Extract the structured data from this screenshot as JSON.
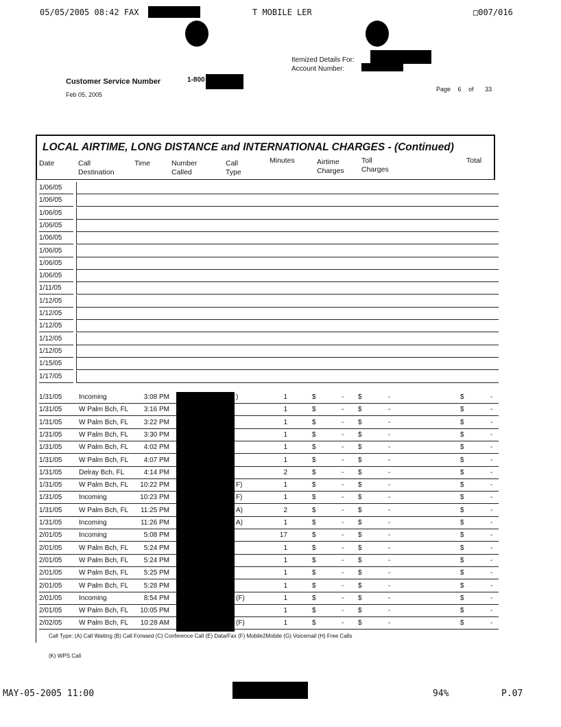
{
  "fax_header": {
    "left": "05/05/2005 08:42 FAX",
    "center": "T MOBILE LER",
    "right": "007/016"
  },
  "account": {
    "itemized_label": "Itemized Details For:",
    "account_label": "Account Number:"
  },
  "customer_service": {
    "label": "Customer Service Number",
    "number_prefix": "1-800"
  },
  "statement_date": "Feb 05, 2005",
  "page_info": {
    "label": "Page",
    "current": "6",
    "of": "of",
    "total": "33"
  },
  "section_title": "LOCAL AIRTIME, LONG DISTANCE and INTERNATIONAL CHARGES  - (Continued)",
  "columns": [
    {
      "line1": "Date",
      "line2": ""
    },
    {
      "line1": "Call",
      "line2": "Destination"
    },
    {
      "line1": "Time",
      "line2": ""
    },
    {
      "line1": "Number",
      "line2": "Called"
    },
    {
      "line1": "Call",
      "line2": "Type"
    },
    {
      "line1": "Minutes",
      "line2": ""
    },
    {
      "line1": "Airtime",
      "line2": "Charges"
    },
    {
      "line1": "Toll",
      "line2": "Charges"
    },
    {
      "line1": "Total",
      "line2": ""
    }
  ],
  "blank_rows": [
    "1/06/05",
    "1/06/05",
    "1/06/05",
    "1/06/05",
    "1/06/05",
    "1/06/05",
    "1/06/05",
    "1/06/05",
    "1/11/05",
    "1/12/05",
    "1/12/05",
    "1/12/05",
    "1/12/05",
    "1/12/05",
    "1/15/05",
    "1/17/05"
  ],
  "rows": [
    {
      "date": "1/31/05",
      "dest": "Incoming",
      "time": "3:08 PM",
      "type": ")",
      "minutes": "1",
      "airtime": "$",
      "airtime_val": "-",
      "toll": "$",
      "toll_val": "-",
      "total": "$",
      "total_val": "-"
    },
    {
      "date": "1/31/05",
      "dest": "W Palm Bch, FL",
      "time": "3:16 PM",
      "type": "",
      "minutes": "1",
      "airtime": "$",
      "airtime_val": "-",
      "toll": "$",
      "toll_val": "-",
      "total": "$",
      "total_val": "-"
    },
    {
      "date": "1/31/05",
      "dest": "W Palm Bch, FL",
      "time": "3:22 PM",
      "type": "",
      "minutes": "1",
      "airtime": "$",
      "airtime_val": "-",
      "toll": "$",
      "toll_val": "-",
      "total": "$",
      "total_val": "-"
    },
    {
      "date": "1/31/05",
      "dest": "W Palm Bch, FL",
      "time": "3:30 PM",
      "type": "",
      "minutes": "1",
      "airtime": "$",
      "airtime_val": "-",
      "toll": "$",
      "toll_val": "-",
      "total": "$",
      "total_val": "-"
    },
    {
      "date": "1/31/05",
      "dest": "W Palm Bch, FL",
      "time": "4:02 PM",
      "type": "",
      "minutes": "1",
      "airtime": "$",
      "airtime_val": "-",
      "toll": "$",
      "toll_val": "-",
      "total": "$",
      "total_val": "-"
    },
    {
      "date": "1/31/05",
      "dest": "W Palm Bch, FL",
      "time": "4:07 PM",
      "type": "",
      "minutes": "1",
      "airtime": "$",
      "airtime_val": "-",
      "toll": "$",
      "toll_val": "-",
      "total": "$",
      "total_val": "-"
    },
    {
      "date": "1/31/05",
      "dest": "Delray Bch, FL",
      "time": "4:14 PM",
      "type": "",
      "minutes": "2",
      "airtime": "$",
      "airtime_val": "-",
      "toll": "$",
      "toll_val": "-",
      "total": "$",
      "total_val": "-"
    },
    {
      "date": "1/31/05",
      "dest": "W Palm Bch, FL",
      "time": "10:22 PM",
      "type": "F)",
      "minutes": "1",
      "airtime": "$",
      "airtime_val": "-",
      "toll": "$",
      "toll_val": "-",
      "total": "$",
      "total_val": "-"
    },
    {
      "date": "1/31/05",
      "dest": "Incoming",
      "time": "10:23 PM",
      "type": "F)",
      "minutes": "1",
      "airtime": "$",
      "airtime_val": "-",
      "toll": "$",
      "toll_val": "-",
      "total": "$",
      "total_val": "-"
    },
    {
      "date": "1/31/05",
      "dest": "W Palm Bch, FL",
      "time": "11:25 PM",
      "type": "A)",
      "minutes": "2",
      "airtime": "$",
      "airtime_val": "-",
      "toll": "$",
      "toll_val": "-",
      "total": "$",
      "total_val": "-"
    },
    {
      "date": "1/31/05",
      "dest": "Incoming",
      "time": "11:26 PM",
      "type": "A)",
      "minutes": "1",
      "airtime": "$",
      "airtime_val": "-",
      "toll": "$",
      "toll_val": "-",
      "total": "$",
      "total_val": "-"
    },
    {
      "date": "2/01/05",
      "dest": "Incoming",
      "time": "5:08 PM",
      "type": "",
      "minutes": "17",
      "airtime": "$",
      "airtime_val": "-",
      "toll": "$",
      "toll_val": "-",
      "total": "$",
      "total_val": "-"
    },
    {
      "date": "2/01/05",
      "dest": "W Palm Bch, FL",
      "time": "5:24 PM",
      "type": "",
      "minutes": "1",
      "airtime": "$",
      "airtime_val": "-",
      "toll": "$",
      "toll_val": "-",
      "total": "$",
      "total_val": "-"
    },
    {
      "date": "2/01/05",
      "dest": "W Palm Bch, FL",
      "time": "5:24 PM",
      "type": "",
      "minutes": "1",
      "airtime": "$",
      "airtime_val": "-",
      "toll": "$",
      "toll_val": "-",
      "total": "$",
      "total_val": "-"
    },
    {
      "date": "2/01/05",
      "dest": "W Palm Bch, FL",
      "time": "5:25 PM",
      "type": "",
      "minutes": "1",
      "airtime": "$",
      "airtime_val": "-",
      "toll": "$",
      "toll_val": "-",
      "total": "$",
      "total_val": "-"
    },
    {
      "date": "2/01/05",
      "dest": "W Palm Bch, FL",
      "time": "5:28 PM",
      "type": "",
      "minutes": "1",
      "airtime": "$",
      "airtime_val": "-",
      "toll": "$",
      "toll_val": "-",
      "total": "$",
      "total_val": "-"
    },
    {
      "date": "2/01/05",
      "dest": "Incoming",
      "time": "8:54 PM",
      "type": "(F)",
      "minutes": "1",
      "airtime": "$",
      "airtime_val": "-",
      "toll": "$",
      "toll_val": "-",
      "total": "$",
      "total_val": "-"
    },
    {
      "date": "2/01/05",
      "dest": "W Palm Bch, FL",
      "time": "10:05 PM",
      "type": "",
      "minutes": "1",
      "airtime": "$",
      "airtime_val": "-",
      "toll": "$",
      "toll_val": "-",
      "total": "$",
      "total_val": "-"
    },
    {
      "date": "2/02/05",
      "dest": "W Palm Bch, FL",
      "time": "10:28 AM",
      "type": "(F)",
      "minutes": "1",
      "airtime": "$",
      "airtime_val": "-",
      "toll": "$",
      "toll_val": "-",
      "total": "$",
      "total_val": "-"
    }
  ],
  "legend": {
    "line1": "Call Type: (A) Call Waiting (B) Call Forward (C) Conference Call (E) Data/Fax (F) Mobile2Mobile (G) Voicemail (H) Free Calls",
    "line2": "(K) WPS Call"
  },
  "fax_footer": {
    "left": "MAY-05-2005  11:00",
    "percent": "94%",
    "page": "P.07"
  }
}
